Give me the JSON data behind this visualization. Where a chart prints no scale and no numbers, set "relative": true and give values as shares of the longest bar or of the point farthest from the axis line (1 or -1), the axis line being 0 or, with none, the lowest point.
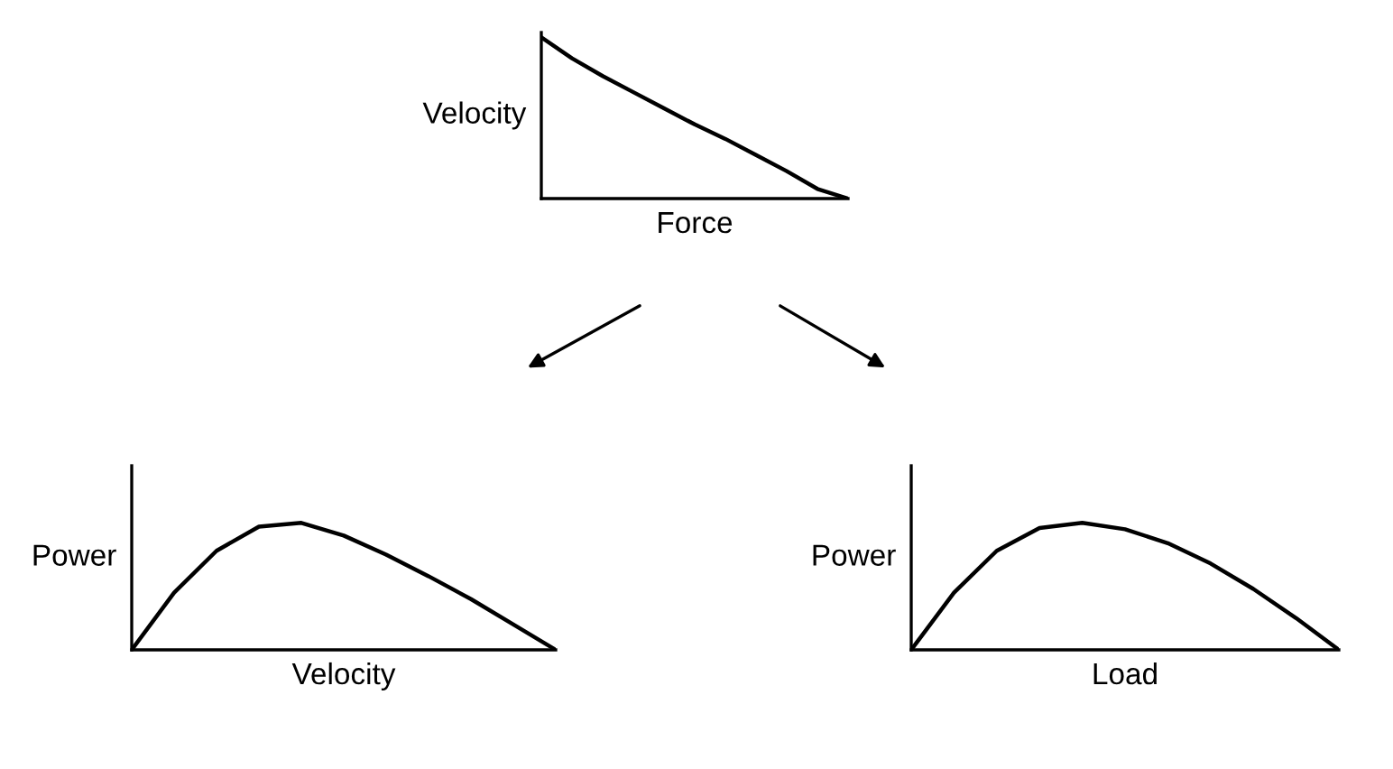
{
  "chart_data": [
    {
      "type": "line",
      "relative": true,
      "xlabel": "Force",
      "ylabel": "Velocity",
      "categories": [
        null,
        null,
        null,
        null,
        null,
        null,
        null,
        null,
        null,
        null,
        null
      ],
      "series": [
        {
          "color": "#000000",
          "values": [
            1.0,
            0.87,
            0.76,
            0.66,
            0.56,
            0.46,
            0.37,
            0.27,
            0.17,
            0.06,
            0.0
          ]
        }
      ],
      "tick_labels": false
    },
    {
      "type": "line",
      "relative": true,
      "xlabel": "Velocity",
      "ylabel": "Power",
      "categories": [
        null,
        null,
        null,
        null,
        null,
        null,
        null,
        null,
        null,
        null,
        null
      ],
      "series": [
        {
          "color": "#000000",
          "values": [
            0.0,
            0.45,
            0.78,
            0.97,
            1.0,
            0.9,
            0.75,
            0.58,
            0.4,
            0.2,
            0.0
          ]
        }
      ],
      "tick_labels": false
    },
    {
      "type": "line",
      "relative": true,
      "xlabel": "Load",
      "ylabel": "Power",
      "categories": [
        null,
        null,
        null,
        null,
        null,
        null,
        null,
        null,
        null,
        null,
        null
      ],
      "series": [
        {
          "color": "#000000",
          "values": [
            0.0,
            0.45,
            0.78,
            0.96,
            1.0,
            0.95,
            0.84,
            0.68,
            0.48,
            0.25,
            0.0
          ]
        }
      ],
      "tick_labels": false
    }
  ]
}
